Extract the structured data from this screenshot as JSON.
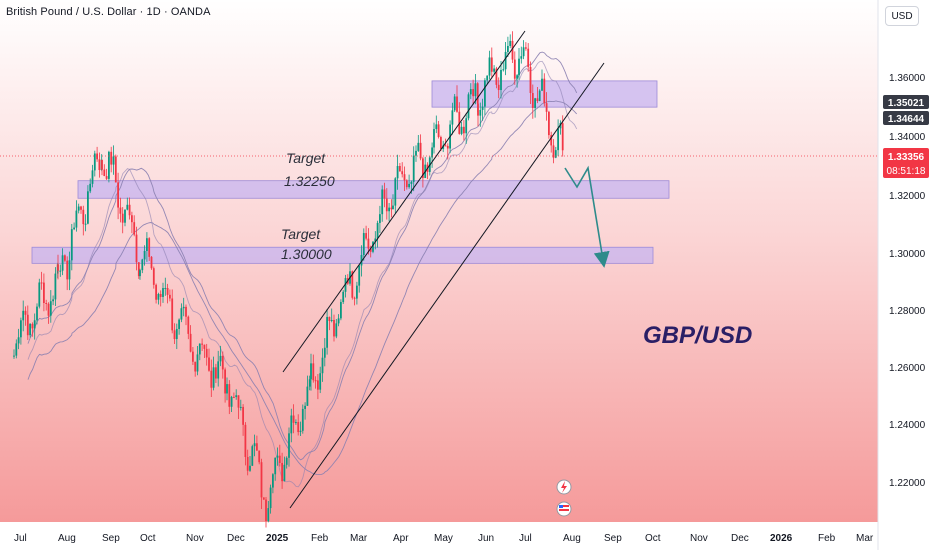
{
  "header": {
    "symbol_title": "British Pound / U.S. Dollar · 1D · OANDA",
    "currency_button": "USD"
  },
  "annotations": {
    "target_word": "Target",
    "target_upper": "1.32250",
    "target_lower": "1.30000",
    "pair_label": "GBP/USD"
  },
  "price_axis": {
    "ticks": [
      "1.36000",
      "1.34000",
      "1.32000",
      "1.30000",
      "1.28000",
      "1.26000",
      "1.24000",
      "1.22000"
    ],
    "tag_upper": "1.35021",
    "tag_mid": "1.34644",
    "tag_current": "1.33356",
    "tag_countdown": "08:51:18"
  },
  "time_axis": {
    "labels": [
      "Jul",
      "Aug",
      "Sep",
      "Oct",
      "Nov",
      "Dec",
      "2025",
      "Feb",
      "Mar",
      "Apr",
      "May",
      "Jun",
      "Jul",
      "Aug",
      "Sep",
      "Oct",
      "Nov",
      "Dec",
      "2026",
      "Feb",
      "Mar"
    ]
  },
  "chart_data": {
    "type": "candlestick",
    "instrument": "British Pound / U.S. Dollar",
    "timeframe": "1D",
    "source": "OANDA",
    "current_price": 1.33356,
    "y_range": [
      1.2,
      1.38
    ],
    "approx_closes": [
      {
        "date": "2024-07",
        "close": 1.27
      },
      {
        "date": "2024-08",
        "close": 1.29
      },
      {
        "date": "2024-09",
        "close": 1.335
      },
      {
        "date": "2024-10",
        "close": 1.3
      },
      {
        "date": "2024-11",
        "close": 1.27
      },
      {
        "date": "2024-12",
        "close": 1.255
      },
      {
        "date": "2025-01",
        "close": 1.215
      },
      {
        "date": "2025-02",
        "close": 1.255
      },
      {
        "date": "2025-03",
        "close": 1.29
      },
      {
        "date": "2025-04",
        "close": 1.32
      },
      {
        "date": "2025-05",
        "close": 1.335
      },
      {
        "date": "2025-06",
        "close": 1.355
      },
      {
        "date": "2025-07",
        "close": 1.37
      },
      {
        "date": "2025-08",
        "close": 1.33356
      }
    ],
    "zones": [
      {
        "low": 1.352,
        "high": 1.359
      },
      {
        "low": 1.3205,
        "high": 1.3245
      },
      {
        "low": 1.298,
        "high": 1.3015
      }
    ],
    "targets": [
      1.3225,
      1.3
    ],
    "channel": "ascending"
  },
  "colors": {
    "background_top": "#ffffff",
    "background_bottom": "#f7a0a0",
    "candle_up": "#089981",
    "candle_down": "#f23645",
    "zone_fill": "#c7b4f0",
    "ichimoku_line": "#8a7fb0",
    "arrow": "#2e8b8b",
    "tag_dark": "#363a45",
    "tag_red": "#f23645"
  }
}
